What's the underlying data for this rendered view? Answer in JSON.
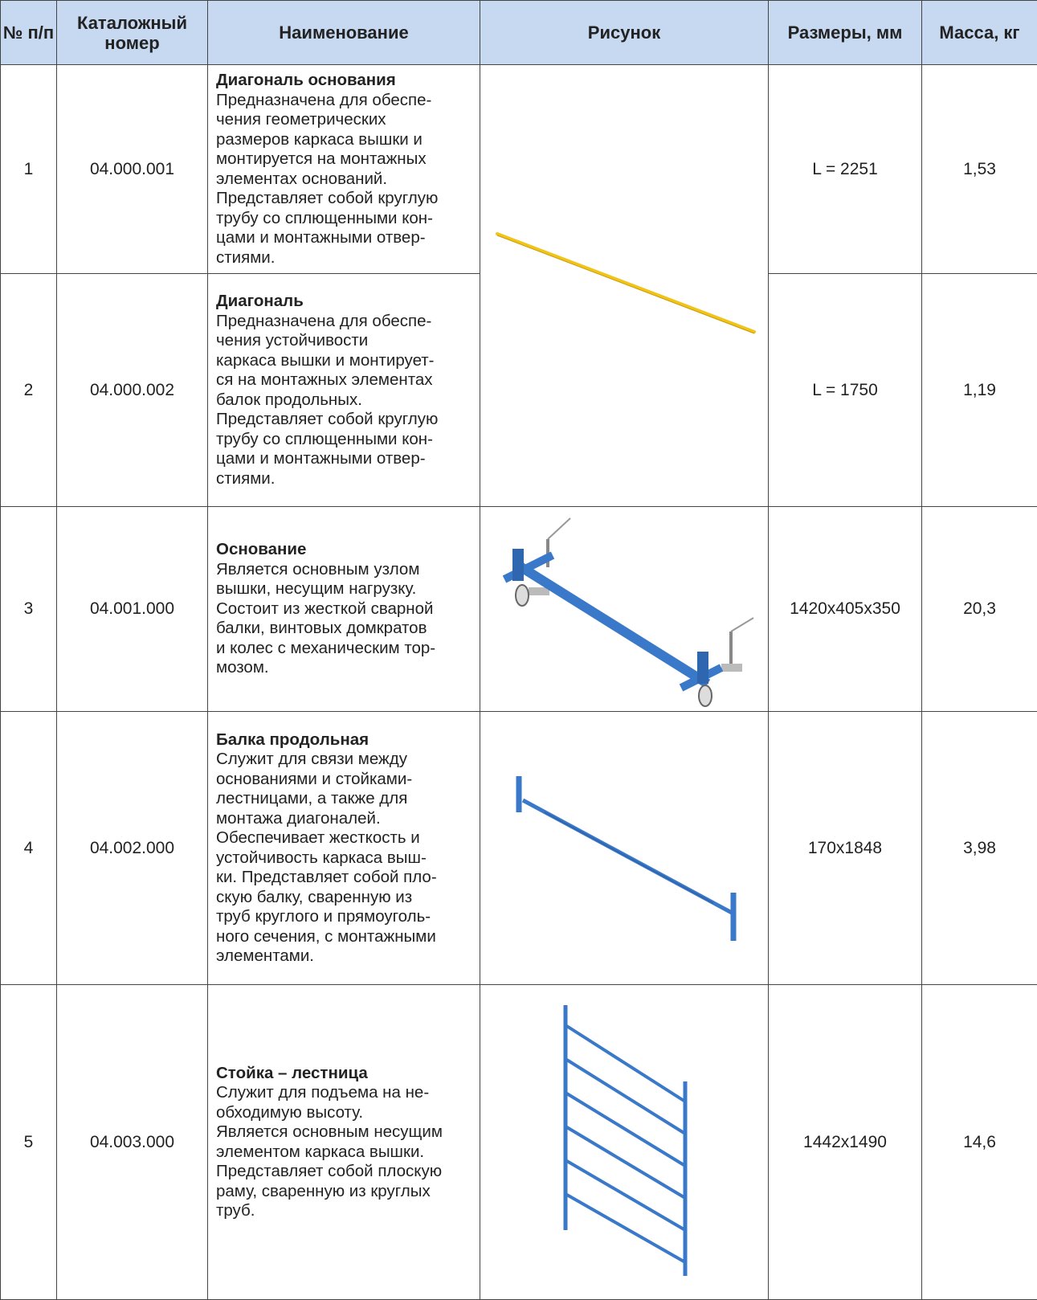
{
  "table": {
    "header": [
      "№ п/п",
      "Каталожный номер",
      "Наименование",
      "Рисунок",
      "Размеры, мм",
      "Масса, кг"
    ],
    "rows": [
      {
        "number": "1",
        "catalog": "04.000.001",
        "name": "Диагональ основания",
        "description": [
          "Предназначена для обеспе-",
          "чения геометрических",
          "размеров каркаса вышки и",
          "монтируется на монтажных",
          "элементах оснований.",
          "Представляет собой круглую",
          "трубу со сплющенными кон-",
          "цами и монтажными отвер-",
          "стиями."
        ],
        "size": "L = 2251",
        "mass": "1,53"
      },
      {
        "number": "2",
        "catalog": "04.000.002",
        "name": "Диагональ",
        "description": [
          "Предназначена для обеспе-",
          "чения устойчивости",
          "каркаса вышки и монтирует-",
          "ся на монтажных элементах",
          "балок продольных.",
          "Представляет собой круглую",
          "трубу со сплющенными кон-",
          "цами и монтажными отвер-",
          "стиями."
        ],
        "size": "L = 1750",
        "mass": "1,19"
      },
      {
        "number": "3",
        "catalog": "04.001.000",
        "name": "Основание",
        "description": [
          "Является основным узлом",
          "вышки, несущим нагрузку.",
          "Состоит из жесткой сварной",
          "балки, винтовых домкратов",
          "и колес с механическим тор-",
          "мозом."
        ],
        "size": "1420x405x350",
        "mass": "20,3"
      },
      {
        "number": "4",
        "catalog": "04.002.000",
        "name": "Балка продольная",
        "description": [
          "Служит для связи между",
          "основаниями и стойками-",
          "лестницами, а также для",
          "монтажа диагоналей.",
          "Обеспечивает жесткость и",
          "устойчивость каркаса выш-",
          "ки. Представляет собой пло-",
          "скую балку, сваренную из",
          "труб круглого и прямоуголь-",
          "ного сечения, с монтажными",
          "элементами."
        ],
        "size": "170x1848",
        "mass": "3,98"
      },
      {
        "number": "5",
        "catalog": "04.003.000",
        "name": "Стойка – лестница",
        "description": [
          "Служит для подъема на не-",
          "обходимую высоту.",
          "Является основным несущим",
          "элементом каркаса вышки.",
          "Представляет собой плоскую",
          "раму, сваренную из круглых",
          "труб."
        ],
        "size": "1442x1490",
        "mass": "14,6"
      }
    ]
  }
}
